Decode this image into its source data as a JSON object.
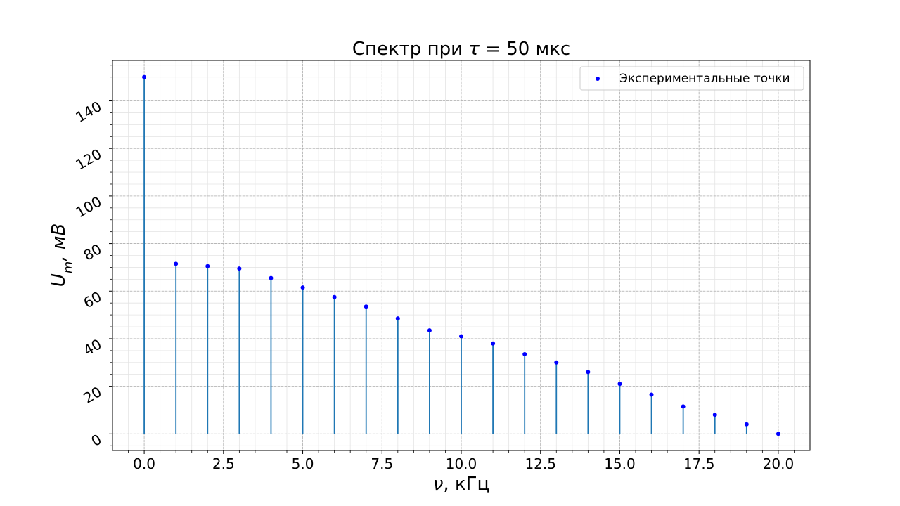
{
  "chart_data": {
    "type": "stem",
    "title": "Спектр при τ = 50 мкс",
    "title_parts": [
      "Спектр при ",
      "τ",
      " = 50 мкс"
    ],
    "xlabel": "ν, кГц",
    "xlabel_parts": [
      "ν",
      ", кГц"
    ],
    "ylabel": "Um, мВ",
    "ylabel_parts": [
      "U",
      "m",
      ", мВ"
    ],
    "xlim": [
      -1.0,
      21.0
    ],
    "ylim": [
      -7,
      157
    ],
    "x_ticks": [
      0.0,
      2.5,
      5.0,
      7.5,
      10.0,
      12.5,
      15.0,
      17.5,
      20.0
    ],
    "x_tick_labels": [
      "0.0",
      "2.5",
      "5.0",
      "7.5",
      "10.0",
      "12.5",
      "15.0",
      "17.5",
      "20.0"
    ],
    "y_ticks": [
      0,
      20,
      40,
      60,
      80,
      100,
      120,
      140
    ],
    "y_tick_labels": [
      "0",
      "20",
      "40",
      "60",
      "80",
      "100",
      "120",
      "140"
    ],
    "grid": true,
    "minor_grid": true,
    "legend_position": "top-right",
    "series": [
      {
        "name": "Экспериментальные точки",
        "marker_color": "#0000ff",
        "stem_color": "#1f77b4",
        "x": [
          0,
          1,
          2,
          3,
          4,
          5,
          6,
          7,
          8,
          9,
          10,
          11,
          12,
          13,
          14,
          15,
          16,
          17,
          18,
          19,
          20
        ],
        "y": [
          150,
          71.5,
          70.5,
          69.5,
          65.5,
          61.5,
          57.5,
          53.5,
          48.5,
          43.5,
          41,
          38,
          33.5,
          30,
          26,
          21,
          16.5,
          11.5,
          8,
          4,
          0
        ]
      }
    ]
  }
}
